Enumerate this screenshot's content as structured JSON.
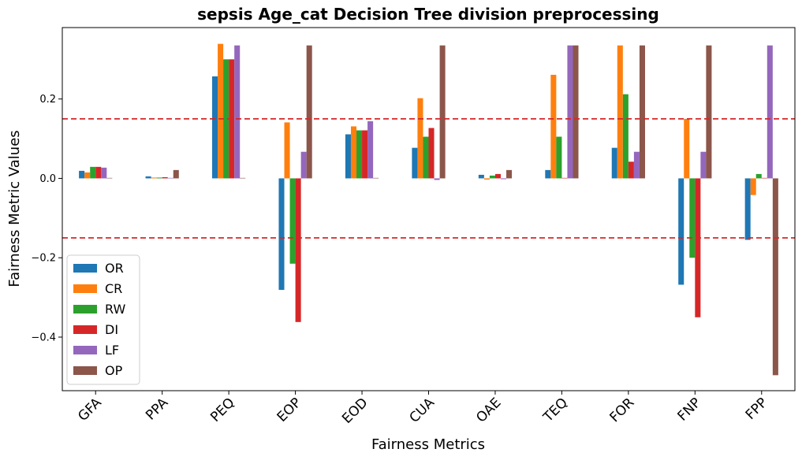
{
  "chart_data": {
    "type": "bar",
    "title": "sepsis Age_cat Decision Tree division preprocessing",
    "xlabel": "Fairness Metrics",
    "ylabel": "Fairness Metric Values",
    "categories": [
      "GFA",
      "PPA",
      "PEQ",
      "EOP",
      "EOD",
      "CUA",
      "OAE",
      "TEQ",
      "FOR",
      "FNP",
      "FPP"
    ],
    "ylim": [
      -0.535,
      0.38
    ],
    "yticks": [
      -0.4,
      -0.2,
      0.0,
      0.2
    ],
    "ytick_labels": [
      "−0.4",
      "−0.2",
      "0.0",
      "0.2"
    ],
    "threshold_lines": [
      0.15,
      -0.15
    ],
    "threshold_color": "#d62728",
    "legend_position": "lower-left",
    "series": [
      {
        "name": "OR",
        "color": "#1f77b4",
        "values": [
          0.019,
          0.005,
          0.257,
          -0.281,
          0.111,
          0.077,
          0.009,
          0.021,
          0.077,
          -0.268,
          -0.155
        ]
      },
      {
        "name": "CR",
        "color": "#ff7f0e",
        "values": [
          0.015,
          0.002,
          0.339,
          0.141,
          0.131,
          0.202,
          -0.003,
          0.261,
          0.335,
          0.15,
          -0.042
        ]
      },
      {
        "name": "RW",
        "color": "#2ca02c",
        "values": [
          0.029,
          0.002,
          0.3,
          -0.215,
          0.121,
          0.105,
          0.007,
          0.105,
          0.212,
          -0.2,
          0.011
        ]
      },
      {
        "name": "DI",
        "color": "#d62728",
        "values": [
          0.029,
          0.003,
          0.3,
          -0.362,
          0.121,
          0.127,
          0.011,
          0.0,
          0.042,
          -0.35,
          0.0
        ]
      },
      {
        "name": "LF",
        "color": "#9467bd",
        "values": [
          0.027,
          0.0,
          0.335,
          0.067,
          0.144,
          -0.004,
          -0.002,
          0.335,
          0.067,
          0.067,
          0.335
        ]
      },
      {
        "name": "OP",
        "color": "#8c564b",
        "values": [
          0.0,
          0.021,
          0.0,
          0.335,
          0.0,
          0.335,
          0.021,
          0.335,
          0.335,
          0.335,
          -0.496
        ]
      }
    ]
  }
}
